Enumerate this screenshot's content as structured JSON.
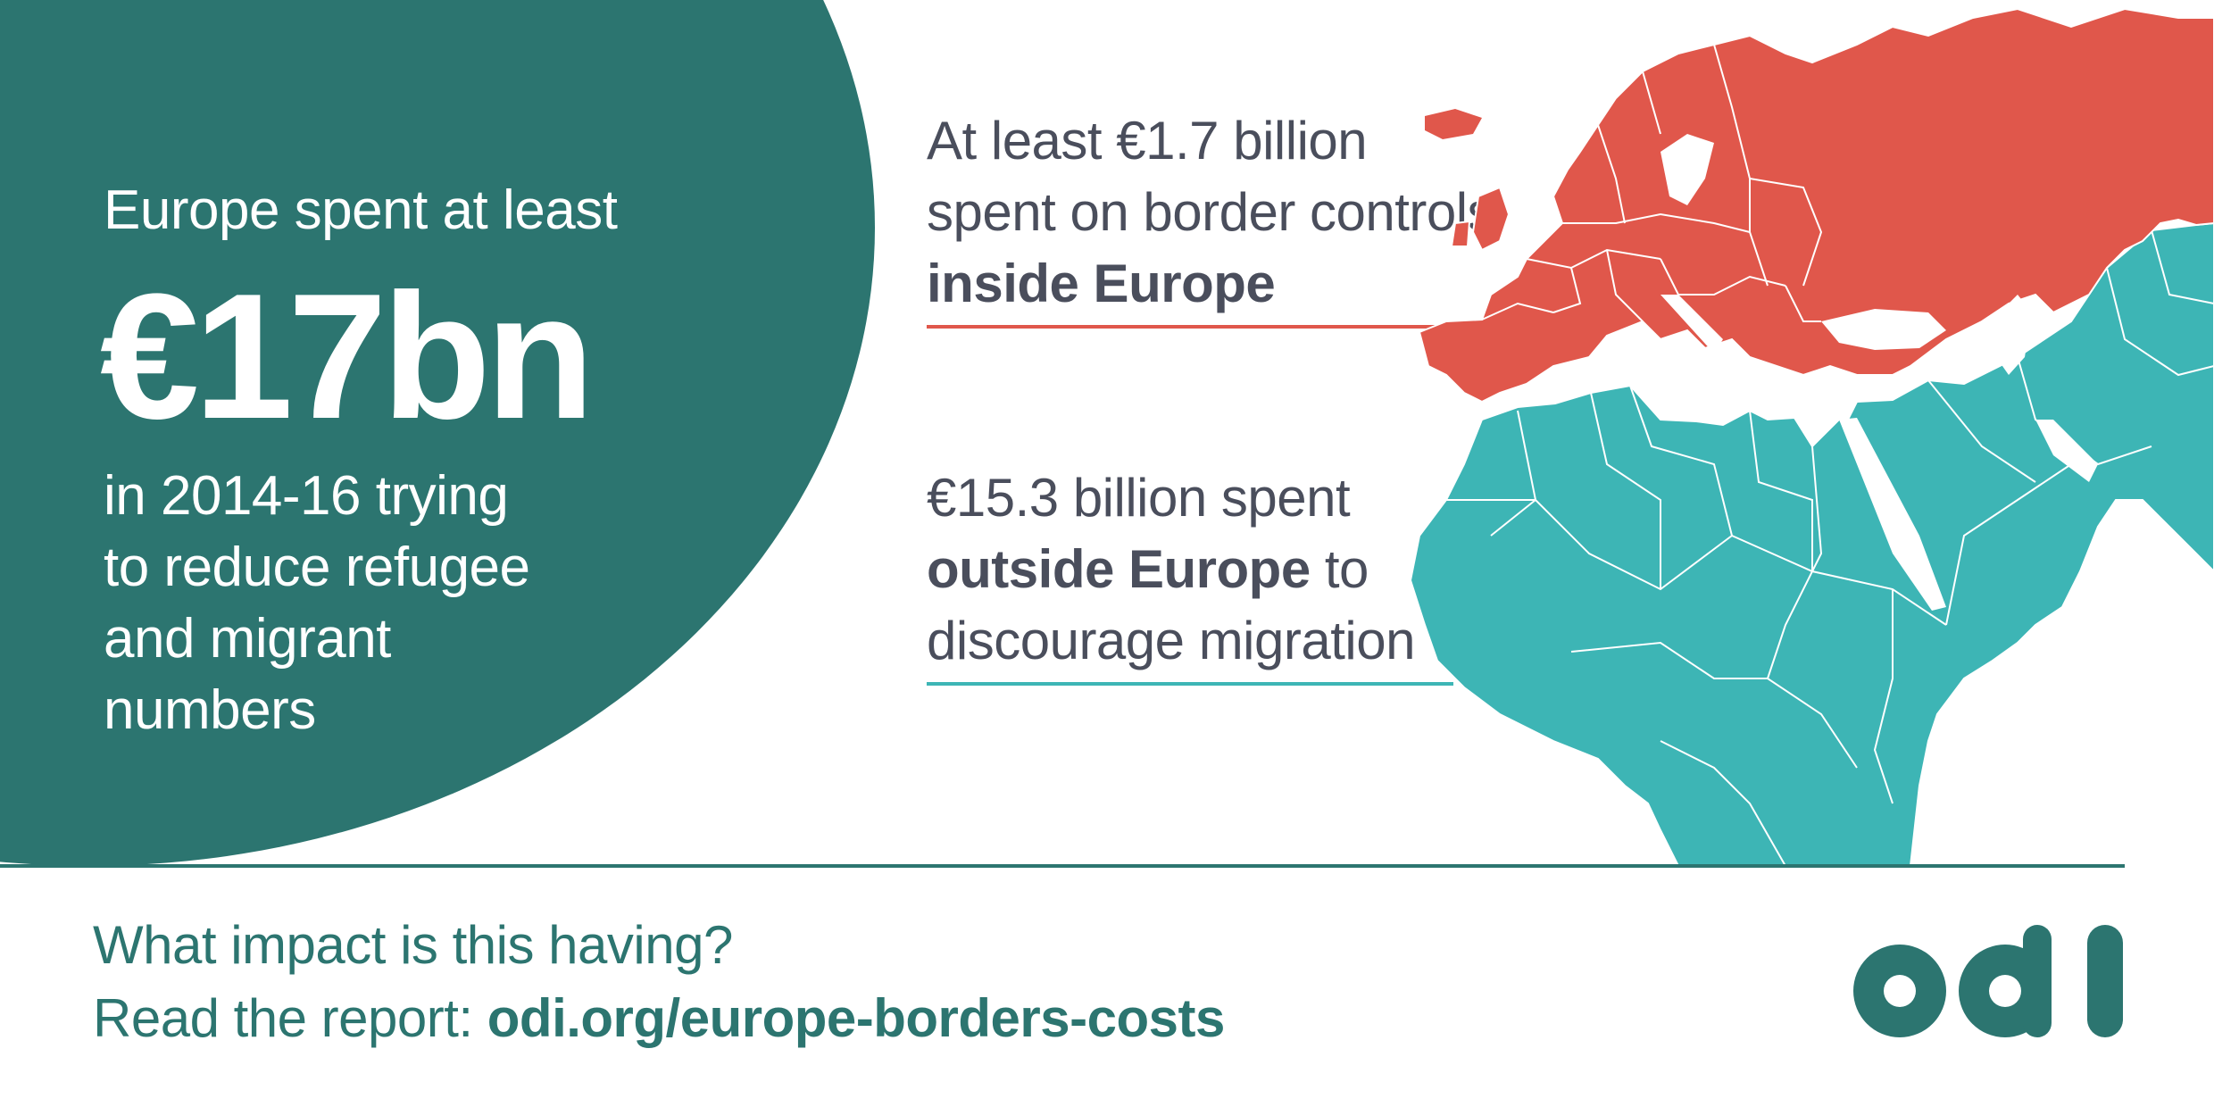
{
  "infographic": {
    "lead": {
      "top": "Europe spent at least",
      "figure": "€17bn",
      "bottom": "in 2014-16 trying to reduce refugee and migrant numbers"
    },
    "inside": {
      "line1": "At least €1.7 billion",
      "line2": "spent on border controls",
      "line3_bold": "inside Europe"
    },
    "outside": {
      "line1": "€15.3 billion spent",
      "line2_bold": "outside Europe",
      "line2_rest": " to",
      "line3": "discourage migration"
    },
    "footer": {
      "question": "What impact is this having?",
      "read_prefix": "Read the report: ",
      "report_link": "odi.org/europe-borders-costs"
    },
    "logo_text": "odi",
    "colors": {
      "teal_dark": "#2c7570",
      "europe_red": "#e0574b",
      "africa_teal": "#3db5b5",
      "text_grey": "#4a4e5c"
    },
    "icons": [
      "europe-map",
      "odi-logo"
    ]
  }
}
